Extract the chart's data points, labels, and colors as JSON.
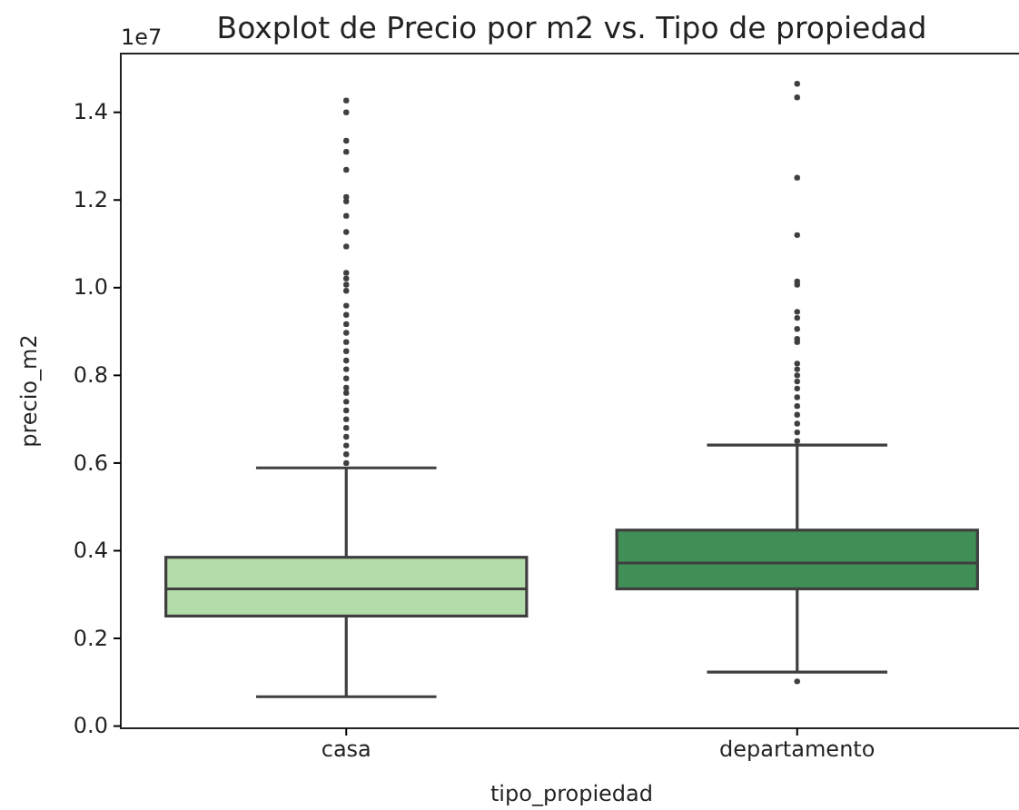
{
  "chart_data": {
    "type": "box",
    "title": "Boxplot de Precio por m2 vs. Tipo de propiedad",
    "xlabel": "tipo_propiedad",
    "ylabel": "precio_m2",
    "annotations": [
      "1e7"
    ],
    "categories": [
      "casa",
      "departamento"
    ],
    "colors": [
      "#b3dcab",
      "#3f8f56"
    ],
    "boxes": [
      {
        "low": 0.067,
        "q1": 0.251,
        "median": 0.313,
        "q3": 0.385,
        "high": 0.589,
        "outliers": [
          1.427,
          1.4,
          1.335,
          1.31,
          1.269,
          1.207,
          1.197,
          1.164,
          1.127,
          1.094,
          1.034,
          1.021,
          1.007,
          0.993,
          0.959,
          0.938,
          0.917,
          0.897,
          0.876,
          0.855,
          0.834,
          0.814,
          0.793,
          0.772,
          0.76,
          0.74,
          0.72,
          0.7,
          0.68,
          0.66,
          0.64,
          0.62,
          0.6
        ]
      },
      {
        "low": 0.123,
        "q1": 0.313,
        "median": 0.372,
        "q3": 0.447,
        "high": 0.641,
        "outliers": [
          1.465,
          1.434,
          1.251,
          1.12,
          1.014,
          1.007,
          0.945,
          0.931,
          0.906,
          0.883,
          0.876,
          0.827,
          0.814,
          0.8,
          0.786,
          0.77,
          0.75,
          0.73,
          0.71,
          0.69,
          0.67,
          0.65,
          0.102
        ]
      }
    ],
    "ylim": [
      -0.005,
      1.534
    ],
    "yticks": [
      {
        "value": 0,
        "label": "0.0"
      },
      0.2,
      0.4,
      0.6,
      0.8,
      {
        "value": 1,
        "label": "1.0"
      },
      1.2,
      1.4
    ],
    "grid": false
  }
}
